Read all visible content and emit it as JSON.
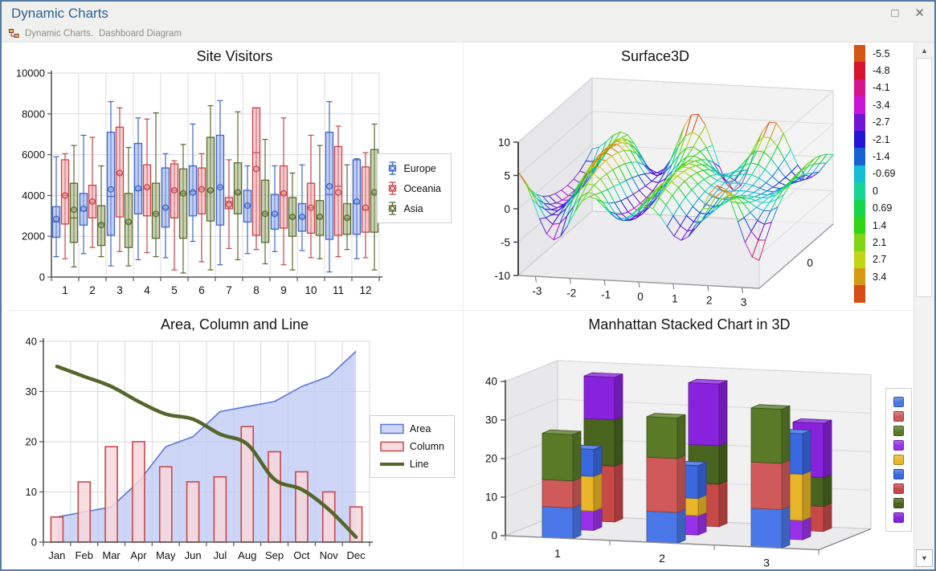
{
  "window": {
    "title": "Dynamic Charts",
    "breadcrumb": [
      "Dynamic Charts.",
      "Dashboard Diagram"
    ],
    "accent_color": "#2E5F94",
    "border_color": "#557CA5"
  },
  "icons": {
    "maximize": "□",
    "close": "✕",
    "scroll_up": "▲",
    "scroll_down": "▼",
    "breadcrumb_diagram": "org-chart-icon"
  },
  "chart_data": [
    {
      "id": "site_visitors",
      "type": "boxplot",
      "title": "Site Visitors",
      "categories": [
        "1",
        "2",
        "3",
        "4",
        "5",
        "6",
        "7",
        "8",
        "9",
        "10",
        "11",
        "12"
      ],
      "ylim": [
        0,
        10000
      ],
      "yticks": [
        0,
        2000,
        4000,
        6000,
        8000,
        10000
      ],
      "legend_position": "right",
      "series": [
        {
          "name": "Europe",
          "stroke": "#3E66C9",
          "fill": "rgba(140,165,235,0.5)",
          "boxes": [
            [
              1000,
              1950,
              2700,
              3450,
              5900,
              2850
            ],
            [
              1150,
              2550,
              3250,
              4100,
              6950,
              3350
            ],
            [
              550,
              2050,
              3950,
              7100,
              8600,
              4300
            ],
            [
              850,
              3100,
              4250,
              6550,
              7800,
              4350
            ],
            [
              950,
              2450,
              3350,
              5350,
              6050,
              3400
            ],
            [
              1750,
              3000,
              4200,
              5450,
              7500,
              4150
            ],
            [
              600,
              2550,
              4400,
              6950,
              8650,
              4400
            ],
            [
              1150,
              2700,
              3500,
              4250,
              5450,
              3500
            ],
            [
              1250,
              2350,
              3050,
              4050,
              5450,
              3100
            ],
            [
              1300,
              2250,
              2900,
              3600,
              5500,
              2950
            ],
            [
              250,
              1850,
              4050,
              7100,
              8600,
              4450
            ],
            [
              900,
              2100,
              3600,
              5750,
              5800,
              3700
            ]
          ]
        },
        {
          "name": "Oceania",
          "stroke": "#C9444A",
          "fill": "rgba(236,160,165,0.5)",
          "boxes": [
            [
              900,
              2600,
              4000,
              5750,
              6050,
              4000
            ],
            [
              1450,
              2900,
              3650,
              4500,
              6850,
              3700
            ],
            [
              1250,
              2950,
              5050,
              7350,
              8300,
              5100
            ],
            [
              1200,
              3000,
              4350,
              5500,
              7750,
              4400
            ],
            [
              350,
              2900,
              4250,
              5550,
              5700,
              4250
            ],
            [
              750,
              3100,
              4300,
              5350,
              6050,
              4300
            ],
            [
              1400,
              3350,
              3700,
              3900,
              5750,
              3550
            ],
            [
              1350,
              2050,
              6100,
              8300,
              8300,
              5300
            ],
            [
              600,
              2400,
              4050,
              5450,
              7800,
              4100
            ],
            [
              950,
              2150,
              3400,
              4600,
              6950,
              3400
            ],
            [
              1000,
              2050,
              4450,
              6400,
              7400,
              4150
            ],
            [
              950,
              2200,
              3300,
              5400,
              6100,
              3400
            ]
          ]
        },
        {
          "name": "Asia",
          "stroke": "#5A6B2F",
          "fill": "rgba(150,168,110,0.5)",
          "boxes": [
            [
              500,
              1700,
              2900,
              4600,
              6450,
              3300
            ],
            [
              1000,
              1550,
              2600,
              3500,
              5450,
              2550
            ],
            [
              550,
              1450,
              2650,
              4100,
              6350,
              2700
            ],
            [
              1000,
              1900,
              3100,
              4600,
              8050,
              3100
            ],
            [
              200,
              1900,
              4100,
              5300,
              6500,
              4100
            ],
            [
              350,
              2750,
              4200,
              6850,
              8400,
              4250
            ],
            [
              850,
              3100,
              4100,
              5600,
              8100,
              4150
            ],
            [
              650,
              1700,
              3100,
              4750,
              6750,
              3100
            ],
            [
              350,
              2000,
              2900,
              3900,
              5100,
              2950
            ],
            [
              900,
              2050,
              2900,
              3750,
              6450,
              2950
            ],
            [
              1350,
              2100,
              2850,
              3600,
              5500,
              2900
            ],
            [
              350,
              2200,
              4100,
              6250,
              7500,
              4150
            ]
          ]
        }
      ]
    },
    {
      "id": "surface3d",
      "type": "surface3d",
      "title": "Surface3D",
      "xticks": [
        -3,
        -2,
        -1,
        0,
        1,
        2,
        3
      ],
      "yticks": [
        10,
        5,
        0,
        -5,
        -10
      ],
      "ylim": [
        -10,
        10
      ],
      "depth_ticks": [
        0
      ],
      "colorbar_labels": [
        "-5.5",
        "-4.8",
        "-4.1",
        "-3.4",
        "-2.7",
        "-2.1",
        "-1.4",
        "-0.69",
        "0",
        "0.69",
        "1.4",
        "2.1",
        "2.7",
        "3.4"
      ]
    },
    {
      "id": "area_column_line",
      "type": "combo",
      "title": "Area, Column and Line",
      "categories": [
        "Jan",
        "Feb",
        "Mar",
        "Apr",
        "May",
        "Jun",
        "Jul",
        "Aug",
        "Sep",
        "Oct",
        "Nov",
        "Dec"
      ],
      "ylim": [
        0,
        40
      ],
      "yticks": [
        0,
        10,
        20,
        30,
        40
      ],
      "series": [
        {
          "name": "Area",
          "type": "area",
          "stroke": "#5A78D6",
          "fill": "rgba(186,198,244,0.72)",
          "values": [
            5,
            6,
            7,
            12,
            19,
            21,
            26,
            27,
            28,
            31,
            33,
            38
          ]
        },
        {
          "name": "Column",
          "type": "column",
          "stroke": "#C9464C",
          "fill": "rgba(247,216,220,0.85)",
          "values": [
            5,
            12,
            19,
            20,
            15,
            12,
            13,
            23,
            18,
            14,
            10,
            7
          ]
        },
        {
          "name": "Line",
          "type": "line",
          "stroke": "#55662B",
          "values": [
            35,
            33,
            31,
            28,
            25.5,
            24.5,
            21.5,
            19.5,
            12.5,
            10.5,
            6.5,
            1
          ]
        }
      ]
    },
    {
      "id": "manhattan",
      "type": "manhattan3d",
      "title": "Manhattan Stacked Chart in 3D",
      "groups": [
        "1",
        "2",
        "3"
      ],
      "ylim": [
        0,
        40
      ],
      "yticks": [
        0,
        10,
        20,
        30,
        40
      ],
      "rows": [
        {
          "row": "front",
          "segments": [
            {
              "color": "#4A78E8",
              "values": [
                8,
                8,
                10
              ]
            },
            {
              "color": "#D05A5A",
              "values": [
                7,
                14,
                12
              ]
            },
            {
              "color": "#5A7A28",
              "values": [
                12,
                10.5,
                14
              ]
            }
          ]
        },
        {
          "row": "middle",
          "segments": [
            {
              "color": "#9832E8",
              "values": [
                5,
                5,
                5
              ]
            },
            {
              "color": "#E8B428",
              "values": [
                9,
                4.5,
                12
              ]
            },
            {
              "color": "#3A68E0",
              "values": [
                7,
                8.5,
                10.5
              ]
            }
          ]
        },
        {
          "row": "back",
          "segments": [
            {
              "color": "#C84848",
              "values": [
                14.5,
                11,
                6.5
              ]
            },
            {
              "color": "#48641E",
              "values": [
                12,
                10,
                7.5
              ]
            },
            {
              "color": "#8822DC",
              "values": [
                11,
                16,
                14
              ]
            }
          ]
        }
      ],
      "legend_colors": [
        "#4A78E8",
        "#D05A5A",
        "#5A7A28",
        "#9832E8",
        "#E8B428",
        "#3A68E0",
        "#C84848",
        "#48641E",
        "#8822DC"
      ]
    }
  ]
}
